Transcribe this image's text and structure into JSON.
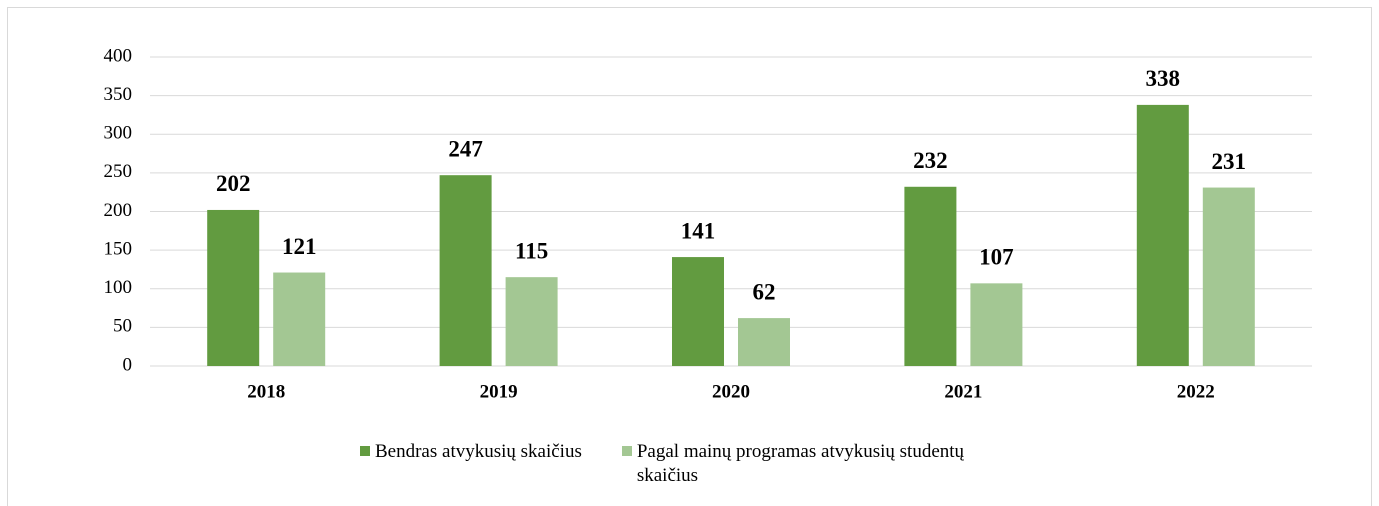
{
  "chart_data": {
    "type": "bar",
    "categories": [
      "2018",
      "2019",
      "2020",
      "2021",
      "2022"
    ],
    "series": [
      {
        "name": "Bendras atvykusių skaičius",
        "color": "#629b40",
        "values": [
          202,
          247,
          141,
          232,
          338
        ]
      },
      {
        "name": "Pagal mainų programas atvykusių studentų skaičius",
        "color": "#a3c793",
        "values": [
          121,
          115,
          62,
          107,
          231
        ]
      }
    ],
    "ylim": [
      0,
      400
    ],
    "yticks": [
      0,
      50,
      100,
      150,
      200,
      250,
      300,
      350,
      400
    ],
    "grid": true,
    "legend": "bottom"
  }
}
